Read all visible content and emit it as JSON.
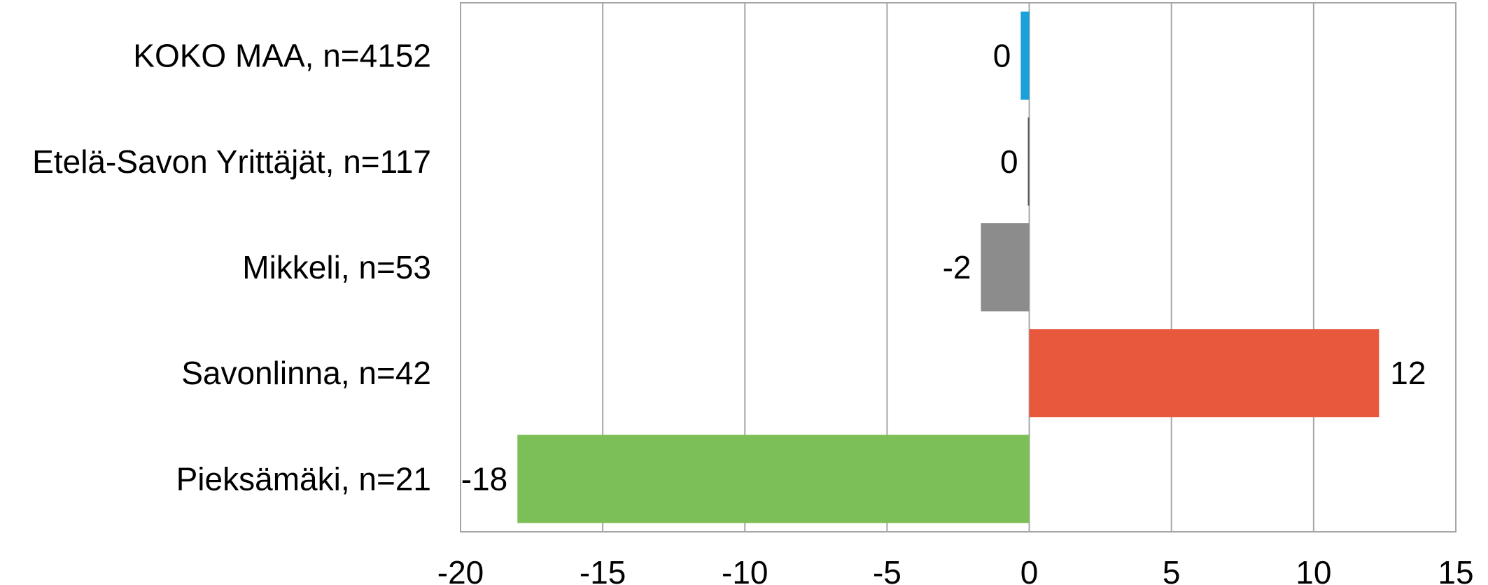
{
  "chart_data": {
    "type": "bar",
    "orientation": "horizontal",
    "categories": [
      "KOKO MAA, n=4152",
      "Etelä-Savon Yrittäjät, n=117",
      "Mikkeli, n=53",
      "Savonlinna, n=42",
      "Pieksämäki, n=21"
    ],
    "values": [
      -0.3,
      -0.05,
      -1.7,
      12.3,
      -18
    ],
    "data_labels": [
      "0",
      "0",
      "-2",
      "12",
      "-18"
    ],
    "bar_colors": [
      "#1AA0DB",
      "#595959",
      "#8C8C8C",
      "#E8583D",
      "#7BBF56"
    ],
    "xlim": [
      -20,
      15
    ],
    "xticks": [
      -20,
      -15,
      -10,
      -5,
      0,
      5,
      10,
      15
    ],
    "xtick_labels": [
      "-20",
      "-15",
      "-10",
      "-5",
      "0",
      "5",
      "10",
      "15"
    ],
    "grid": "vertical",
    "legend": "none"
  },
  "colors": {
    "grid": "#A6A6A6",
    "frame": "#A6A6A6",
    "text": "#000000"
  }
}
